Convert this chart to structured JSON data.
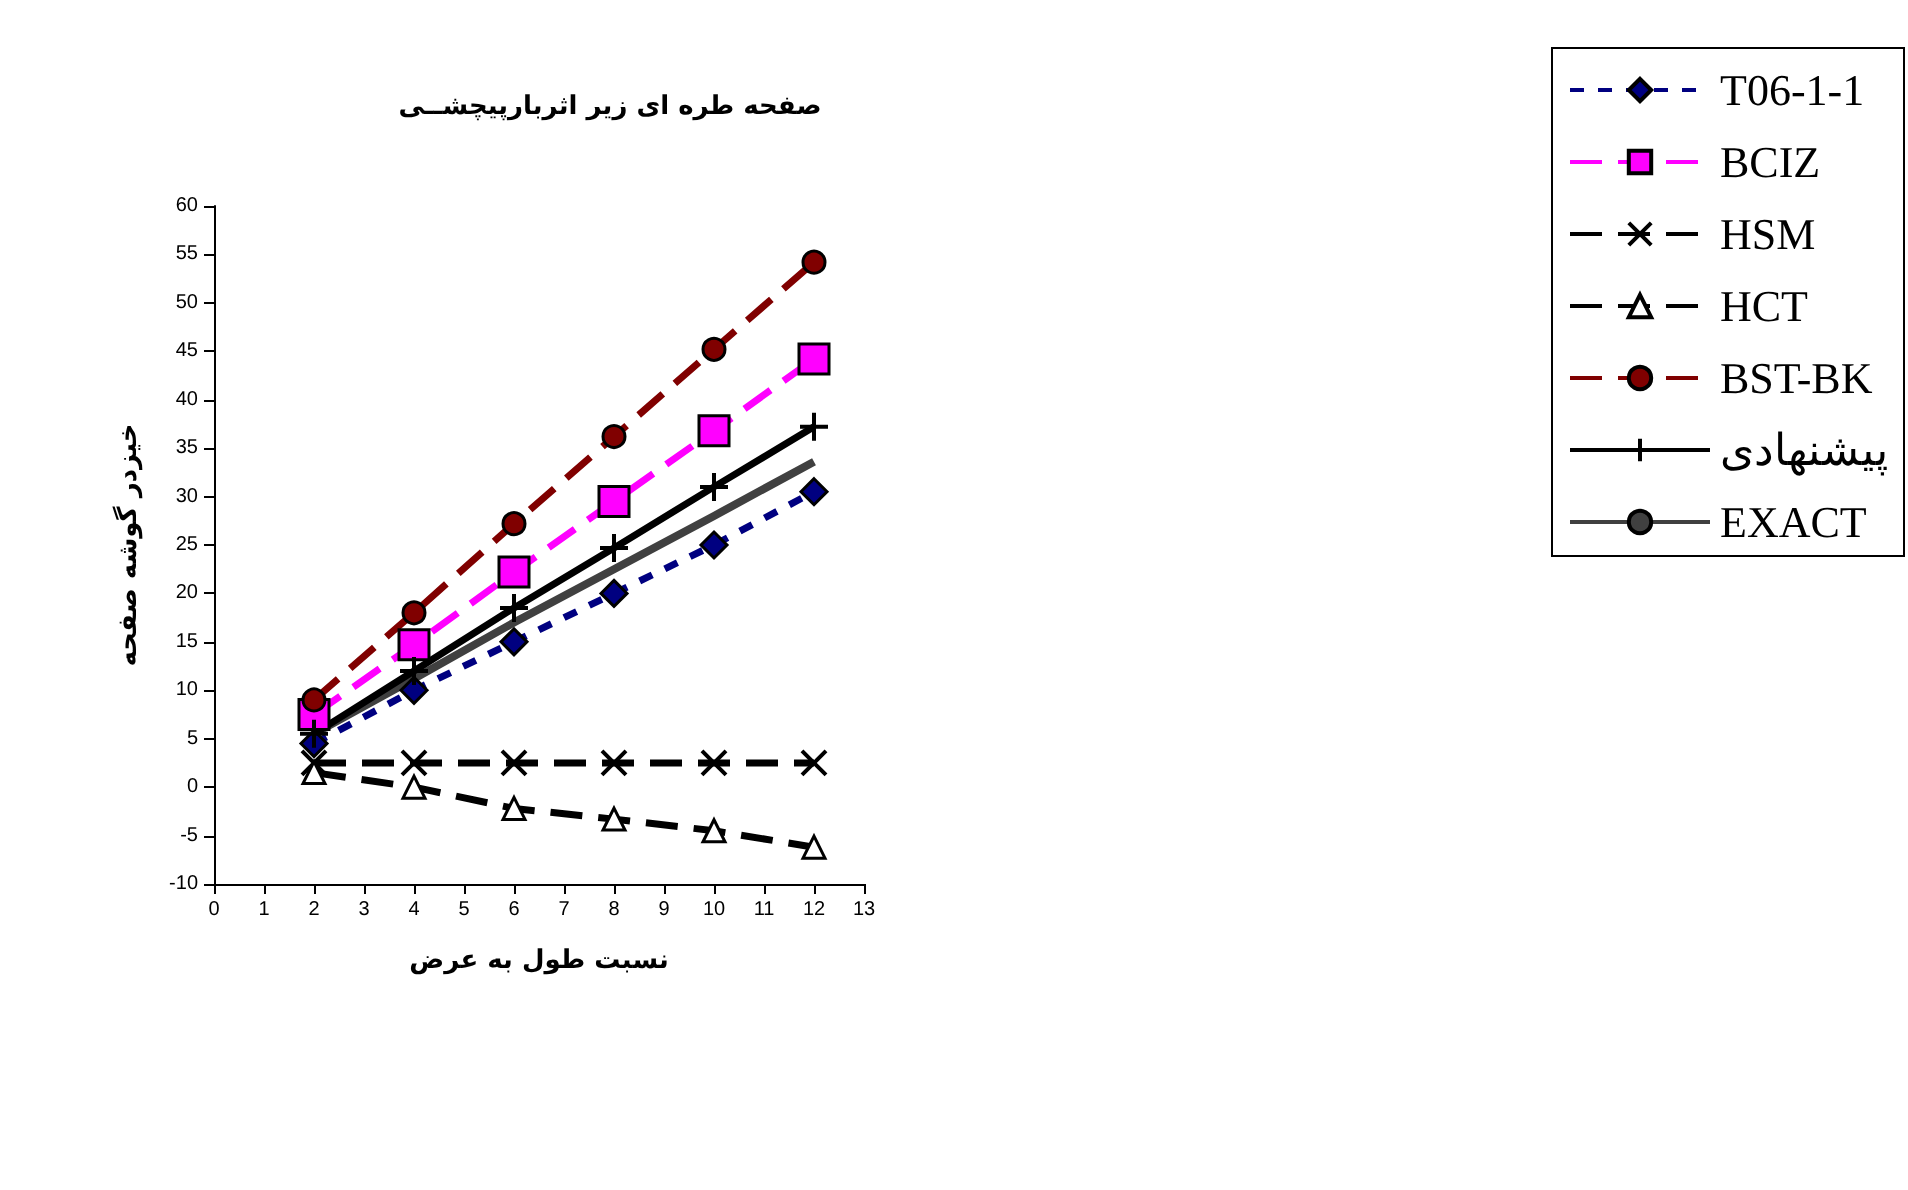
{
  "chart_data": {
    "type": "line",
    "title": "صفحه طره ای زیر اثربارپیچشــی",
    "xlabel": "نسبت طول به عرض",
    "ylabel": "خیزدر گوشه صفحه",
    "x": [
      2,
      4,
      6,
      8,
      10,
      12
    ],
    "xlim": [
      0,
      13
    ],
    "xticks": [
      0,
      1,
      2,
      3,
      4,
      5,
      6,
      7,
      8,
      9,
      10,
      11,
      12,
      13
    ],
    "ylim": [
      -10,
      60
    ],
    "yticks": [
      -10,
      -5,
      0,
      5,
      10,
      15,
      20,
      25,
      30,
      35,
      40,
      45,
      50,
      55,
      60
    ],
    "grid": false,
    "legend": "right",
    "series": [
      {
        "name": "T06-1-1",
        "color": "#000080",
        "marker": "diamond",
        "line_style": "dotted",
        "values": [
          4.5,
          10,
          15,
          20,
          25,
          30.5
        ]
      },
      {
        "name": "BCIZ",
        "color": "#ff00ff",
        "marker": "square",
        "line_style": "dashed",
        "values": [
          7.5,
          14.7,
          22.2,
          29.5,
          36.8,
          44.2
        ]
      },
      {
        "name": "HSM",
        "color": "#000000",
        "marker": "x",
        "line_style": "dashed",
        "values": [
          2.5,
          2.5,
          2.5,
          2.5,
          2.5,
          2.5
        ]
      },
      {
        "name": "HCT",
        "color": "#ffffff",
        "marker": "triangle",
        "line_style": "dashed",
        "values": [
          1.5,
          0,
          -2.2,
          -3.3,
          -4.5,
          -6.2
        ]
      },
      {
        "name": "BST-BK",
        "color": "#800000",
        "marker": "circle",
        "line_style": "dashed",
        "values": [
          9,
          18,
          27.2,
          36.2,
          45.2,
          54.2
        ]
      },
      {
        "name": "پیشنهادی",
        "color": "#000000",
        "marker": "cross",
        "line_style": "solid",
        "values": [
          5.5,
          12,
          18.5,
          24.7,
          31,
          37.2
        ]
      },
      {
        "name": "EXACT",
        "color": "#404040",
        "marker": "none",
        "line_style": "solid",
        "values": [
          5.5,
          11.2,
          17,
          22.5,
          28,
          33.6
        ]
      }
    ]
  }
}
